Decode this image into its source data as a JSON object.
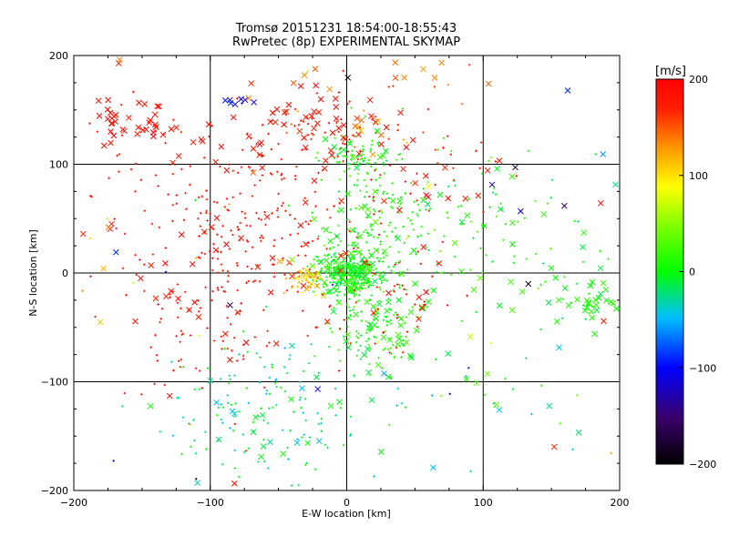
{
  "chart_data": {
    "type": "scatter",
    "title": "Tromsø 20151231 18:54:00-18:55:43",
    "subtitle": "RwPretec (8p) EXPERIMENTAL SKYMAP",
    "xlabel": "E-W location [km]",
    "ylabel": "N-S location [km]",
    "xlim": [
      -200,
      200
    ],
    "ylim": [
      -200,
      200
    ],
    "xticks": [
      -200,
      -100,
      0,
      100,
      200
    ],
    "yticks": [
      -200,
      -100,
      0,
      100,
      200
    ],
    "xtick_labels": [
      "−200",
      "−100",
      "0",
      "100",
      "200"
    ],
    "ytick_labels": [
      "−200",
      "−100",
      "0",
      "100",
      "200"
    ],
    "grid_lines": [
      -100,
      0,
      100
    ],
    "grid": true,
    "colorbar": {
      "label": "[m/s]",
      "range": [
        -200,
        200
      ],
      "ticks": [
        200,
        100,
        0,
        -100,
        -200
      ],
      "tick_labels": [
        "200",
        "100",
        "0",
        "−100",
        "−200"
      ],
      "colormap": "rainbow (black→purple→blue→cyan→green→yellow→orange→red)",
      "position": "right"
    },
    "marker_types": [
      "small plus",
      "cross"
    ],
    "clusters": [
      {
        "x": -155,
        "y": 140,
        "sx": 18,
        "sy": 12,
        "n": 40,
        "vmin": 170,
        "vmax": 200,
        "cross": 0.85
      },
      {
        "x": -82,
        "y": 160,
        "sx": 8,
        "sy": 4,
        "n": 8,
        "vmin": -120,
        "vmax": -90,
        "cross": 0.8
      },
      {
        "x": -20,
        "y": 140,
        "sx": 25,
        "sy": 18,
        "n": 40,
        "vmin": 160,
        "vmax": 200,
        "cross": 0.6
      },
      {
        "x": 10,
        "y": 130,
        "sx": 25,
        "sy": 12,
        "n": 35,
        "vmin": 110,
        "vmax": 200,
        "cross": 0.5
      },
      {
        "x": 10,
        "y": 105,
        "sx": 12,
        "sy": 8,
        "n": 60,
        "vmin": -20,
        "vmax": 30,
        "cross": 0.2
      },
      {
        "x": -75,
        "y": 50,
        "sx": 45,
        "sy": 50,
        "n": 260,
        "vmin": 165,
        "vmax": 200,
        "cross": 0.1
      },
      {
        "x": -70,
        "y": 130,
        "sx": 30,
        "sy": 15,
        "n": 20,
        "vmin": 170,
        "vmax": 200,
        "cross": 0.7
      },
      {
        "x": 0,
        "y": 0,
        "sx": 12,
        "sy": 10,
        "n": 320,
        "vmin": -20,
        "vmax": 30,
        "cross": 0.2
      },
      {
        "x": -30,
        "y": -5,
        "sx": 8,
        "sy": 7,
        "n": 60,
        "vmin": 80,
        "vmax": 150,
        "cross": 0.2
      },
      {
        "x": 20,
        "y": 40,
        "sx": 20,
        "sy": 35,
        "n": 160,
        "vmin": -10,
        "vmax": 30,
        "cross": 0.15
      },
      {
        "x": 20,
        "y": -50,
        "sx": 18,
        "sy": 25,
        "n": 140,
        "vmin": -15,
        "vmax": 30,
        "cross": 0.3
      },
      {
        "x": -60,
        "y": -130,
        "sx": 35,
        "sy": 30,
        "n": 150,
        "vmin": -50,
        "vmax": 10,
        "cross": 0.15
      },
      {
        "x": -110,
        "y": -40,
        "sx": 30,
        "sy": 40,
        "n": 90,
        "vmin": 165,
        "vmax": 200,
        "cross": 0.25
      },
      {
        "x": 60,
        "y": 40,
        "sx": 45,
        "sy": 40,
        "n": 80,
        "vmin": -10,
        "vmax": 40,
        "cross": 0.25
      },
      {
        "x": 110,
        "y": 40,
        "sx": 50,
        "sy": 35,
        "n": 50,
        "vmin": -30,
        "vmax": 30,
        "cross": 0.3
      },
      {
        "x": 180,
        "y": -25,
        "sx": 15,
        "sy": 12,
        "n": 45,
        "vmin": -10,
        "vmax": 20,
        "cross": 0.6
      },
      {
        "x": 40,
        "y": 100,
        "sx": 40,
        "sy": 30,
        "n": 50,
        "vmin": 160,
        "vmax": 200,
        "cross": 0.4
      },
      {
        "x": 30,
        "y": -20,
        "sx": 20,
        "sy": 30,
        "n": 50,
        "vmin": 165,
        "vmax": 200,
        "cross": 0.3
      },
      {
        "x": 100,
        "y": -120,
        "sx": 60,
        "sy": 50,
        "n": 40,
        "vmin": -60,
        "vmax": 40,
        "cross": 0.3
      },
      {
        "x": 30,
        "y": 180,
        "sx": 60,
        "sy": 12,
        "n": 20,
        "vmin": 120,
        "vmax": 200,
        "cross": 0.5
      },
      {
        "x": 0,
        "y": 0,
        "sx": 180,
        "sy": 180,
        "n": 90,
        "vmin": -200,
        "vmax": 200,
        "cross": 0.5
      },
      {
        "x": -175,
        "y": 20,
        "sx": 10,
        "sy": 40,
        "n": 12,
        "vmin": 100,
        "vmax": 200,
        "cross": 0.5
      }
    ]
  }
}
